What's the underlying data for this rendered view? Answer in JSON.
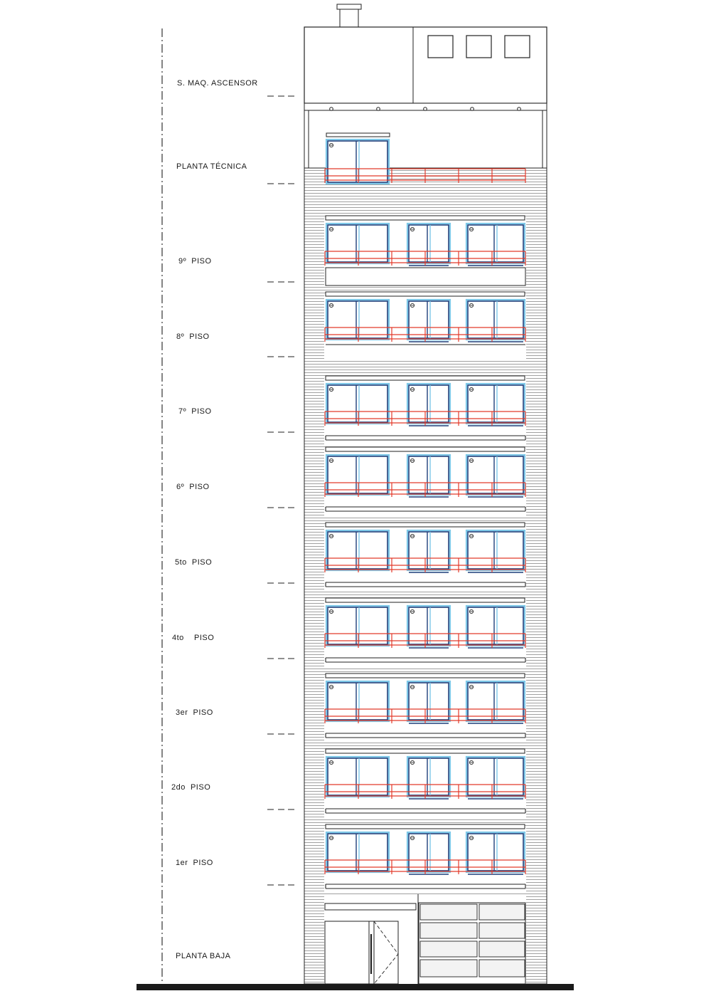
{
  "levels": [
    {
      "label": "S. MAQ. ASCENSOR"
    },
    {
      "label": "PLANTA TÉCNICA"
    },
    {
      "label": "9º  PISO"
    },
    {
      "label": "8º  PISO"
    },
    {
      "label": "7º  PISO"
    },
    {
      "label": "6º  PISO"
    },
    {
      "label": "5to  PISO"
    },
    {
      "label": "4to    PISO"
    },
    {
      "label": "3er  PISO"
    },
    {
      "label": "2do  PISO"
    },
    {
      "label": "1er  PISO"
    },
    {
      "label": "PLANTA BAJA"
    }
  ],
  "colors": {
    "line": "#222222",
    "glazing_outer": "#7ec8e8",
    "glazing_frame": "#1f3f7a",
    "railing": "#e23a2a",
    "cladding": "#777777",
    "ground": "#1a1a1a"
  }
}
